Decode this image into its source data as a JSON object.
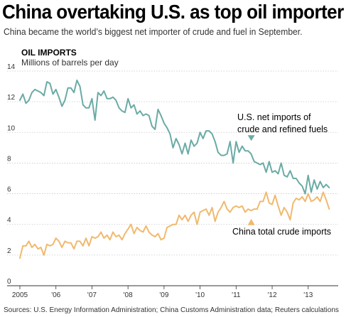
{
  "header": {
    "title": "China overtaking U.S. as top oil importer",
    "subtitle": "China became the world’s biggest net importer of crude and fuel in September."
  },
  "footer": {
    "source": "Sources: U.S. Energy Information Administration; China Customs Administration data; Reuters calculations"
  },
  "chart_data": {
    "type": "line",
    "title": "OIL IMPORTS",
    "ylabel": "Millions of barrels per day",
    "xlabel": "",
    "ylim": [
      0,
      14
    ],
    "xlim": [
      2005.0,
      2013.833
    ],
    "yticks": [
      0,
      2,
      4,
      6,
      8,
      10,
      12,
      14
    ],
    "xtick_labels": [
      {
        "x": 2005,
        "label": "2005"
      },
      {
        "x": 2006,
        "label": "'06"
      },
      {
        "x": 2007,
        "label": "'07"
      },
      {
        "x": 2008,
        "label": "'08"
      },
      {
        "x": 2009,
        "label": "'09"
      },
      {
        "x": 2010,
        "label": "'10"
      },
      {
        "x": 2011,
        "label": "'11"
      },
      {
        "x": 2012,
        "label": "'12"
      },
      {
        "x": 2013,
        "label": "'13"
      }
    ],
    "grid": "horizontal",
    "annotations": [
      {
        "series": 0,
        "line1": "U.S. net imports of",
        "line2": "crude and refined fuels",
        "x": 2011.42,
        "y": 9.4
      },
      {
        "series": 1,
        "line1": "China total crude imports",
        "line2": "",
        "x": 2011.42,
        "y": 4.0
      }
    ],
    "series": [
      {
        "color": "#6aaba5",
        "start": 2005.0,
        "step": 0.08333,
        "values": [
          12.1,
          12.5,
          11.9,
          12.1,
          12.6,
          12.8,
          12.7,
          12.6,
          12.4,
          13.3,
          13.2,
          12.5,
          12.8,
          12.3,
          11.7,
          12.1,
          12.9,
          12.9,
          12.6,
          13.4,
          13.0,
          11.8,
          11.6,
          11.6,
          12.2,
          10.8,
          12.6,
          12.4,
          12.7,
          12.2,
          12.2,
          12.3,
          12.1,
          11.6,
          11.4,
          11.3,
          12.2,
          11.6,
          11.8,
          11.2,
          11.4,
          11.1,
          11.2,
          11.1,
          10.4,
          10.2,
          11.5,
          11.1,
          10.6,
          10.3,
          9.9,
          9.0,
          9.6,
          9.2,
          8.6,
          9.3,
          8.6,
          9.5,
          9.1,
          9.3,
          10.0,
          9.6,
          10.1,
          10.1,
          9.9,
          9.4,
          8.7,
          8.5,
          8.5,
          8.6,
          9.4,
          8.0,
          9.4,
          8.7,
          9.1,
          8.8,
          8.8,
          8.6,
          8.1,
          8.0,
          7.9,
          8.0,
          7.4,
          8.1,
          7.4,
          7.5,
          7.3,
          8.0,
          7.2,
          7.1,
          7.5,
          7.0,
          7.0,
          6.7,
          6.5,
          6.0,
          7.2,
          6.1,
          6.9,
          6.3,
          6.8,
          6.4,
          6.6,
          6.4
        ]
      },
      {
        "color": "#f0b96e",
        "start": 2005.0,
        "step": 0.08333,
        "values": [
          1.8,
          2.6,
          2.6,
          2.9,
          2.5,
          2.7,
          2.4,
          2.5,
          2.0,
          2.7,
          2.6,
          2.7,
          3.1,
          2.9,
          2.5,
          2.9,
          2.8,
          2.8,
          2.4,
          2.9,
          2.9,
          2.6,
          3.1,
          2.6,
          3.2,
          3.1,
          3.2,
          3.5,
          3.1,
          3.3,
          3.0,
          3.5,
          3.2,
          3.3,
          3.0,
          3.4,
          3.7,
          4.0,
          3.4,
          3.8,
          3.6,
          3.5,
          3.9,
          3.5,
          3.3,
          3.2,
          3.4,
          3.0,
          3.1,
          3.8,
          3.9,
          4.0,
          4.0,
          4.6,
          4.3,
          4.6,
          4.2,
          4.6,
          4.8,
          4.0,
          4.8,
          4.9,
          5.0,
          4.6,
          5.1,
          4.2,
          4.8,
          5.1,
          5.5,
          5.0,
          4.8,
          5.1,
          5.2,
          5.1,
          5.2,
          4.8,
          5.0,
          4.9,
          5.0,
          5.0,
          5.5,
          5.5,
          6.1,
          5.4,
          5.3,
          5.9,
          5.2,
          4.6,
          5.1,
          4.8,
          4.3,
          5.4,
          5.7,
          5.6,
          5.8,
          5.5,
          6.0,
          5.5,
          5.6,
          5.8,
          5.5,
          6.1,
          5.6,
          5.0
        ]
      }
    ]
  }
}
